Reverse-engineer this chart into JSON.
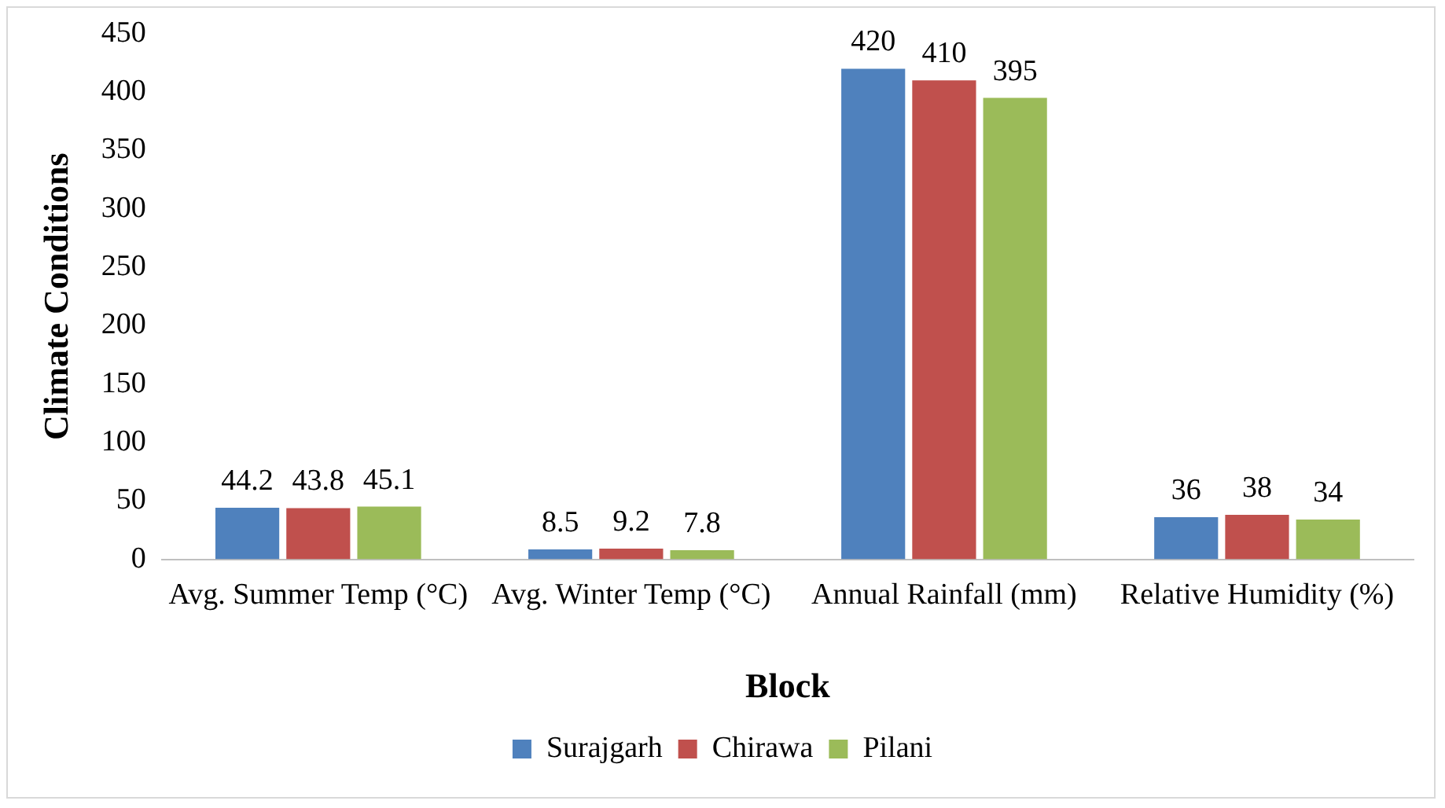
{
  "chart_data": {
    "type": "bar",
    "xlabel": "Block",
    "ylabel": "Climate Conditions",
    "categories": [
      "Avg. Summer Temp (°C)",
      "Avg. Winter Temp (°C)",
      "Annual Rainfall (mm)",
      "Relative Humidity (%)"
    ],
    "series": [
      {
        "name": "Surajgarh",
        "color": "#4f81bd",
        "values": [
          44.2,
          8.5,
          420,
          36
        ]
      },
      {
        "name": "Chirawa",
        "color": "#c0504d",
        "values": [
          43.8,
          9.2,
          410,
          38
        ]
      },
      {
        "name": "Pilani",
        "color": "#9bbb59",
        "values": [
          45.1,
          7.8,
          395,
          34
        ]
      }
    ],
    "ylim": [
      0,
      450
    ],
    "yticks": [
      0,
      50,
      100,
      150,
      200,
      250,
      300,
      350,
      400,
      450
    ],
    "grid": false,
    "legend": "bottom",
    "data_labels": true
  }
}
